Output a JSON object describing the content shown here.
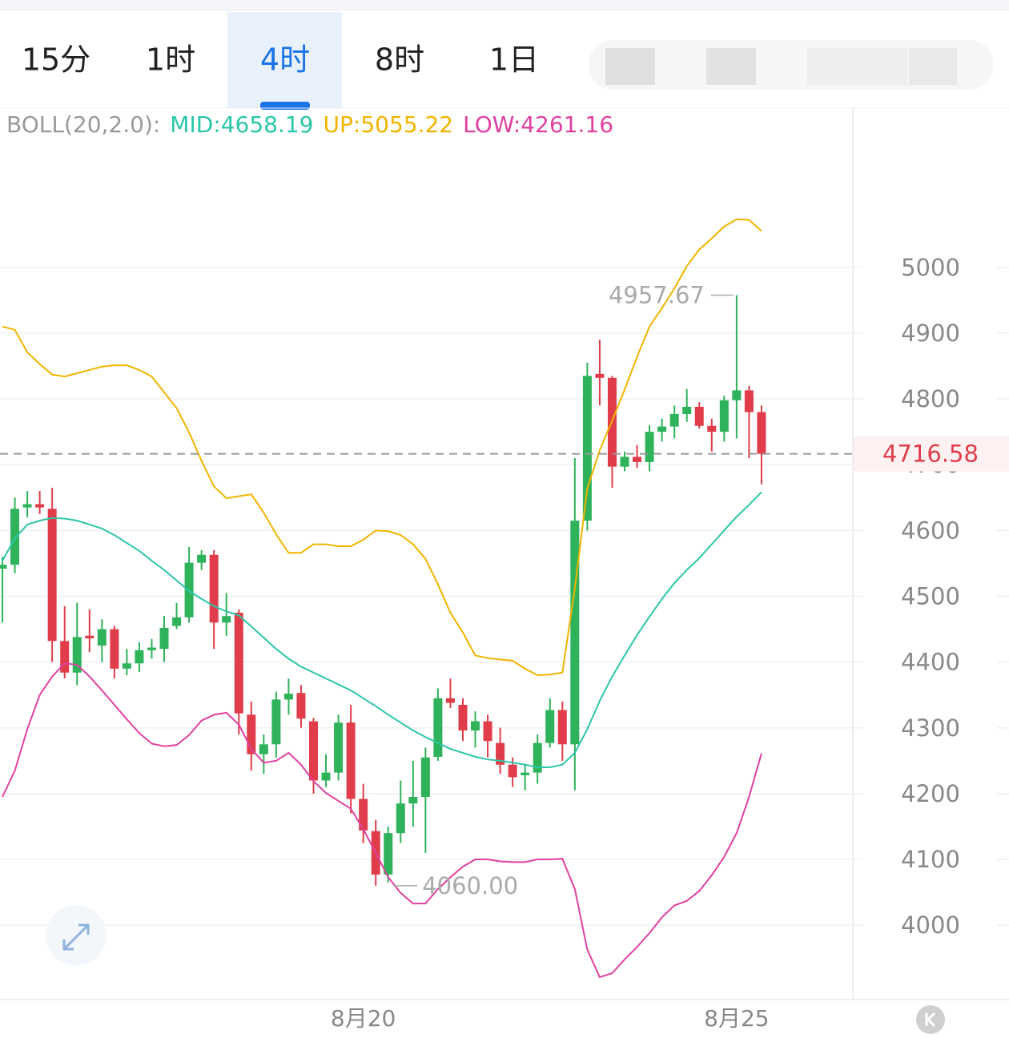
{
  "chart_data": {
    "type": "candlestick",
    "tabs": [
      "15分",
      "1时",
      "4时",
      "8时",
      "1日"
    ],
    "active_tab": 2,
    "indicator": "BOLL(20,2.0):",
    "up_color": "#2eb35a",
    "down_color": "#e03c4a",
    "categories": [
      null,
      null,
      null,
      null,
      null,
      null,
      null,
      null,
      null,
      null,
      null,
      null,
      null,
      null,
      null,
      null,
      null,
      null,
      null,
      null,
      null,
      null,
      null,
      null,
      null,
      null,
      null,
      null,
      null,
      "8月20",
      null,
      null,
      null,
      null,
      null,
      null,
      null,
      null,
      null,
      null,
      null,
      null,
      null,
      null,
      null,
      null,
      null,
      null,
      null,
      null,
      null,
      null,
      null,
      null,
      null,
      null,
      null,
      null,
      null,
      "8月25",
      null,
      null
    ],
    "open": [
      4542,
      4548,
      4635,
      4640,
      4633,
      4432,
      4384,
      4440,
      4425,
      4450,
      4390,
      4398,
      4418,
      4420,
      4455,
      4468,
      4551,
      4563,
      4460,
      4475,
      4320,
      4260,
      4275,
      4343,
      4353,
      4310,
      4220,
      4232,
      4308,
      4192,
      4143,
      4077,
      4140,
      4185,
      4195,
      4256,
      4345,
      4335,
      4296,
      4310,
      4277,
      4244,
      4228,
      4232,
      4277,
      4327,
      4275,
      4615,
      4838,
      4832,
      4697,
      4712,
      4704,
      4750,
      4758,
      4777,
      4788,
      4759,
      4750,
      4798,
      4813,
      4780
    ],
    "high": [
      4560,
      4650,
      4660,
      4660,
      4665,
      4485,
      4490,
      4480,
      4465,
      4455,
      4420,
      4430,
      4435,
      4470,
      4490,
      4575,
      4570,
      4570,
      4505,
      4480,
      4340,
      4290,
      4355,
      4375,
      4365,
      4315,
      4260,
      4320,
      4335,
      4215,
      4160,
      4150,
      4220,
      4250,
      4270,
      4360,
      4375,
      4345,
      4325,
      4320,
      4300,
      4255,
      4245,
      4290,
      4345,
      4340,
      4710,
      4855,
      4890,
      4835,
      4720,
      4730,
      4760,
      4770,
      4790,
      4815,
      4795,
      4770,
      4805,
      4957.67,
      4820,
      4790
    ],
    "low": [
      4460,
      4535,
      4620,
      4625,
      4400,
      4375,
      4365,
      4415,
      4400,
      4375,
      4380,
      4385,
      4405,
      4400,
      4450,
      4460,
      4540,
      4420,
      4440,
      4290,
      4235,
      4230,
      4255,
      4320,
      4300,
      4200,
      4210,
      4220,
      4170,
      4125,
      4060,
      4065,
      4125,
      4150,
      4110,
      4250,
      4330,
      4280,
      4270,
      4255,
      4230,
      4210,
      4205,
      4215,
      4270,
      4250,
      4205,
      4600,
      4790,
      4665,
      4690,
      4695,
      4690,
      4735,
      4740,
      4765,
      4755,
      4720,
      4735,
      4740,
      4710,
      4670
    ],
    "close": [
      4548,
      4633,
      4640,
      4635,
      4432,
      4384,
      4438,
      4436,
      4450,
      4390,
      4398,
      4418,
      4422,
      4452,
      4468,
      4551,
      4563,
      4460,
      4470,
      4322,
      4260,
      4275,
      4343,
      4352,
      4314,
      4220,
      4232,
      4308,
      4192,
      4144,
      4077,
      4140,
      4185,
      4195,
      4255,
      4345,
      4338,
      4296,
      4310,
      4280,
      4244,
      4225,
      4232,
      4277,
      4327,
      4275,
      4615,
      4835,
      4832,
      4697,
      4712,
      4704,
      4750,
      4758,
      4777,
      4788,
      4759,
      4750,
      4798,
      4813,
      4780,
      4716.58
    ],
    "boll": [
      {
        "name": "MID",
        "label": "MID:4658.19",
        "color": "#2cc6a8",
        "values": [
          4554,
          4588,
          4609,
          4615,
          4619,
          4618,
          4615,
          4609,
          4603,
          4593,
          4581,
          4569,
          4554,
          4540,
          4524,
          4508,
          4496,
          4485,
          4477,
          4471,
          4454,
          4437,
          4420,
          4405,
          4393,
          4384,
          4375,
          4366,
          4357,
          4345,
          4333,
          4320,
          4308,
          4296,
          4286,
          4277,
          4268,
          4262,
          4256,
          4252,
          4250,
          4247,
          4244,
          4240,
          4240,
          4244,
          4262,
          4298,
          4341,
          4378,
          4410,
          4441,
          4469,
          4496,
          4520,
          4540,
          4558,
          4579,
          4600,
          4621,
          4639,
          4658.19
        ]
      },
      {
        "name": "UP",
        "label": "UP:5055.22",
        "color": "#f0b400",
        "values": [
          4910,
          4905,
          4871,
          4853,
          4837,
          4834,
          4839,
          4844,
          4849,
          4851,
          4851,
          4844,
          4834,
          4810,
          4786,
          4749,
          4706,
          4667,
          4649,
          4652,
          4655,
          4627,
          4594,
          4566,
          4566,
          4579,
          4579,
          4576,
          4576,
          4586,
          4600,
          4599,
          4593,
          4579,
          4557,
          4518,
          4475,
          4445,
          4410,
          4406,
          4404,
          4402,
          4390,
          4380,
          4381,
          4384,
          4512,
          4664,
          4722,
          4767,
          4814,
          4864,
          4910,
          4938,
          4968,
          5002,
          5027,
          5044,
          5062,
          5073,
          5072,
          5055.22
        ]
      },
      {
        "name": "LOW",
        "label": "LOW:4261.16",
        "color": "#e040a0",
        "values": [
          4195,
          4235,
          4298,
          4350,
          4378,
          4398,
          4396,
          4378,
          4357,
          4335,
          4313,
          4292,
          4276,
          4272,
          4274,
          4289,
          4311,
          4320,
          4323,
          4305,
          4268,
          4247,
          4250,
          4262,
          4244,
          4219,
          4201,
          4189,
          4177,
          4146,
          4110,
          4073,
          4049,
          4033,
          4033,
          4055,
          4073,
          4089,
          4100,
          4100,
          4097,
          4096,
          4096,
          4100,
          4100,
          4101,
          4055,
          3963,
          3921,
          3927,
          3948,
          3967,
          3988,
          4012,
          4030,
          4037,
          4052,
          4076,
          4104,
          4140,
          4195,
          4261.16
        ]
      }
    ],
    "last_price": 4716.58,
    "annotations": [
      {
        "value": 4957.67,
        "label": "4957.67"
      },
      {
        "value": 4060,
        "label": "4060.00"
      }
    ],
    "ylim": [
      3887,
      5242
    ],
    "yticks": [
      4000,
      4100,
      4200,
      4300,
      4400,
      4500,
      4600,
      4700,
      4800,
      4900,
      5000
    ],
    "grid": true
  }
}
